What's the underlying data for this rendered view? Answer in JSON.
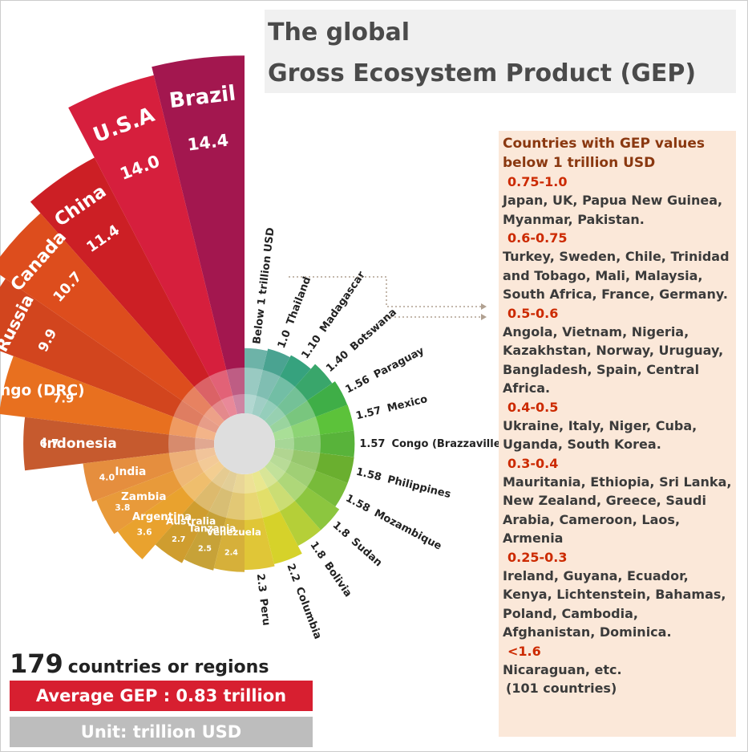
{
  "chart_data": {
    "type": "radial_bar",
    "title": [
      "The global",
      "Gross Ecosystem Product (GEP)"
    ],
    "categories": [
      "Brazil",
      "U.S.A",
      "China",
      "Canada",
      "Russia",
      "Congo (DRC)",
      "Indonesia",
      "India",
      "Zambia",
      "Argentina",
      "Australia",
      "Tanzania",
      "Venezuela",
      "Peru",
      "Columbia",
      "Bolivia",
      "Sudan",
      "Mozambique",
      "Philippines",
      "Congo (Brazzaville)",
      "Mexico",
      "Paraguay",
      "Botswana",
      "Madagascar",
      "Thailand",
      "Below 1 trillion USD"
    ],
    "values": [
      14.4,
      14.0,
      11.4,
      10.7,
      9.9,
      7.9,
      6.7,
      4.0,
      3.8,
      3.6,
      2.7,
      2.5,
      2.4,
      2.3,
      2.2,
      1.8,
      1.8,
      1.58,
      1.58,
      1.57,
      1.57,
      1.56,
      1.4,
      1.1,
      1.0,
      0.9
    ],
    "value_labels": [
      "14.4",
      "14.0",
      "11.4",
      "10.7",
      "9.9",
      "7.9",
      "6.7",
      "4.0",
      "3.8",
      "3.6",
      "2.7",
      "2.5",
      "2.4",
      "2.3",
      "2.2",
      "1.8",
      "1.8",
      "1.58",
      "1.58",
      "1.57",
      "1.57",
      "1.56",
      "1.40",
      "1.10",
      "1.0",
      null
    ],
    "colors": [
      "#a3174f",
      "#d61f3d",
      "#cc1f25",
      "#dd4d1d",
      "#d2451e",
      "#e8701f",
      "#c65a2e",
      "#e58e3e",
      "#e89a3a",
      "#e9a22e",
      "#cf9d2f",
      "#c7a238",
      "#d6b03a",
      "#e0c637",
      "#d6d22a",
      "#b5cf38",
      "#8cc63f",
      "#78bb3a",
      "#6aaf2f",
      "#58b33a",
      "#5cc23a",
      "#3fae47",
      "#39a66b",
      "#36a27e",
      "#4aa391",
      "#6db3a8"
    ]
  },
  "panel": {
    "heading": "Countries with GEP values below 1 trillion USD",
    "groups": [
      {
        "range": "0.75-1.0",
        "countries": "Japan, UK, Papua New Guinea, Myanmar, Pakistan."
      },
      {
        "range": "0.6-0.75",
        "countries": "Turkey, Sweden, Chile, Trinidad and Tobago, Mali, Malaysia, South Africa, France, Germany."
      },
      {
        "range": "0.5-0.6",
        "countries": "Angola, Vietnam, Nigeria, Kazakhstan, Norway, Uruguay, Bangladesh, Spain, Central Africa."
      },
      {
        "range": "0.4-0.5",
        "countries": "Ukraine, Italy, Niger, Cuba, Uganda, South Korea."
      },
      {
        "range": "0.3-0.4",
        "countries": "Mauritania, Ethiopia, Sri Lanka, New Zealand, Greece, Saudi Arabia, Cameroon, Laos, Armenia"
      },
      {
        "range": "0.25-0.3",
        "countries": "Ireland, Guyana, Ecuador, Kenya, Lichtenstein, Bahamas, Poland, Cambodia, Afghanistan, Dominica."
      },
      {
        "range": "<1.6",
        "countries": "Nicaraguan, etc.",
        "note": "(101 countries)"
      }
    ]
  },
  "summary": {
    "count": "179",
    "count_label": "countries or regions",
    "average": "Average GEP : 0.83 trillion",
    "unit": "Unit: trillion USD"
  }
}
